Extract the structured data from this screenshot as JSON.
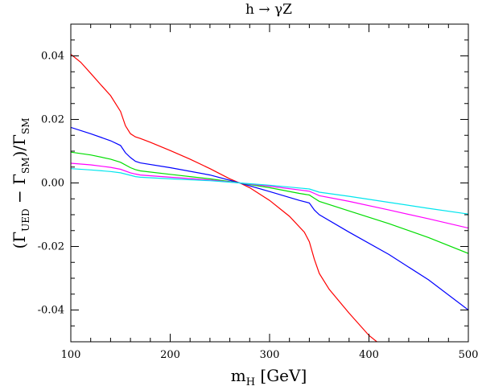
{
  "chart_data": {
    "type": "line",
    "title": "h → γZ",
    "xlabel": "m_H [GeV]",
    "ylabel": "(Γ_UED − Γ_SM)/Γ_SM",
    "xlim": [
      100,
      500
    ],
    "ylim": [
      -0.05,
      0.05
    ],
    "xticks": [
      100,
      200,
      300,
      400,
      500
    ],
    "xtick_labels": [
      "100",
      "200",
      "300",
      "400",
      "500"
    ],
    "yticks": [
      -0.04,
      -0.02,
      0.0,
      0.02,
      0.04
    ],
    "ytick_labels": [
      "-0.04",
      "-0.02",
      "0.00",
      "0.02",
      "0.04"
    ],
    "grid": false,
    "series": [
      {
        "color": "#ff0000",
        "x": [
          100,
          110,
          120,
          130,
          140,
          150,
          155,
          160,
          165,
          170,
          180,
          200,
          220,
          240,
          260,
          270,
          280,
          300,
          320,
          335,
          340,
          345,
          350,
          360,
          380,
          400,
          410
        ],
        "y": [
          0.0405,
          0.038,
          0.0345,
          0.031,
          0.0275,
          0.0225,
          0.018,
          0.0155,
          0.0145,
          0.014,
          0.0128,
          0.0102,
          0.0075,
          0.0045,
          0.0013,
          0.0,
          -0.0015,
          -0.0055,
          -0.0105,
          -0.0155,
          -0.0185,
          -0.024,
          -0.0285,
          -0.0335,
          -0.041,
          -0.048,
          -0.0505
        ]
      },
      {
        "color": "#0000ff",
        "x": [
          100,
          120,
          140,
          150,
          155,
          160,
          165,
          170,
          200,
          240,
          270,
          300,
          330,
          340,
          345,
          350,
          380,
          420,
          460,
          500
        ],
        "y": [
          0.0175,
          0.0155,
          0.0133,
          0.0118,
          0.0095,
          0.008,
          0.0068,
          0.0063,
          0.0048,
          0.0025,
          0.0,
          -0.0027,
          -0.0055,
          -0.0063,
          -0.0085,
          -0.01,
          -0.0155,
          -0.0225,
          -0.0305,
          -0.04
        ]
      },
      {
        "color": "#00dd00",
        "x": [
          100,
          120,
          140,
          150,
          160,
          165,
          170,
          200,
          240,
          270,
          300,
          330,
          340,
          345,
          350,
          380,
          420,
          460,
          500
        ],
        "y": [
          0.0097,
          0.0088,
          0.0075,
          0.0065,
          0.0048,
          0.0042,
          0.0038,
          0.0027,
          0.0013,
          0.0,
          -0.0015,
          -0.0033,
          -0.0038,
          -0.0048,
          -0.0058,
          -0.0088,
          -0.0128,
          -0.0172,
          -0.0222
        ]
      },
      {
        "color": "#ff00ff",
        "x": [
          100,
          120,
          140,
          150,
          160,
          165,
          170,
          200,
          240,
          270,
          300,
          330,
          340,
          345,
          350,
          380,
          420,
          460,
          500
        ],
        "y": [
          0.0062,
          0.0057,
          0.0049,
          0.0043,
          0.0032,
          0.0028,
          0.0025,
          0.0018,
          0.0009,
          0.0,
          -0.001,
          -0.0022,
          -0.0026,
          -0.0033,
          -0.004,
          -0.0058,
          -0.0085,
          -0.0113,
          -0.0142
        ]
      },
      {
        "color": "#00e5ee",
        "x": [
          100,
          120,
          140,
          150,
          160,
          165,
          170,
          200,
          240,
          270,
          300,
          330,
          340,
          345,
          350,
          380,
          420,
          460,
          500
        ],
        "y": [
          0.0045,
          0.0041,
          0.0036,
          0.0032,
          0.0024,
          0.002,
          0.0018,
          0.0013,
          0.0007,
          0.0,
          -0.0007,
          -0.0016,
          -0.0019,
          -0.0024,
          -0.0029,
          -0.0042,
          -0.0061,
          -0.008,
          -0.0098
        ]
      }
    ]
  }
}
